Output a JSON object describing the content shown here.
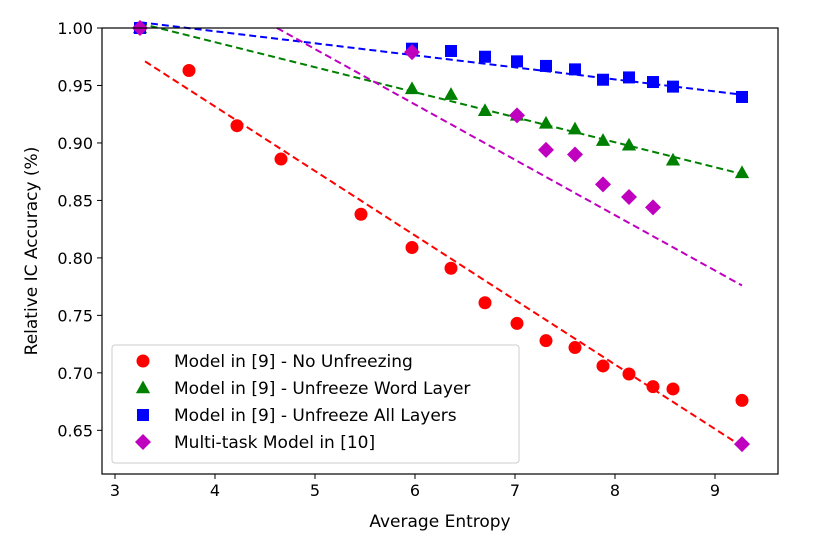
{
  "chart_data": {
    "type": "scatter",
    "title": "",
    "xlabel": "Average Entropy",
    "ylabel": "Relative IC Accuracy (%)",
    "xlim": [
      2.87,
      9.63
    ],
    "ylim": [
      0.612,
      1.0
    ],
    "xticks": [
      3,
      4,
      5,
      6,
      7,
      8,
      9
    ],
    "xtick_labels": [
      "3",
      "4",
      "5",
      "6",
      "7",
      "8",
      "9"
    ],
    "yticks": [
      0.65,
      0.7,
      0.75,
      0.8,
      0.85,
      0.9,
      0.95,
      1.0
    ],
    "ytick_labels": [
      "0.65",
      "0.70",
      "0.75",
      "0.80",
      "0.85",
      "0.90",
      "0.95",
      "1.00"
    ],
    "legend_position": "bottom-left",
    "series": [
      {
        "name": "Model in [9] - No Unfreezing",
        "color": "#ff0000",
        "marker": "circle",
        "x": [
          3.25,
          3.74,
          4.22,
          4.66,
          5.46,
          5.97,
          6.36,
          6.7,
          7.02,
          7.31,
          7.6,
          7.88,
          8.14,
          8.38,
          8.58,
          9.27
        ],
        "y": [
          1.0,
          0.963,
          0.915,
          0.886,
          0.838,
          0.809,
          0.791,
          0.761,
          0.743,
          0.728,
          0.722,
          0.706,
          0.699,
          0.688,
          0.686,
          0.676
        ],
        "fit": [
          [
            3.3,
            0.971
          ],
          [
            9.27,
            0.636
          ]
        ]
      },
      {
        "name": "Model in [9] - Unfreeze Word Layer",
        "color": "#008000",
        "marker": "triangle",
        "x": [
          3.25,
          5.97,
          6.36,
          6.7,
          7.02,
          7.31,
          7.6,
          7.88,
          8.14,
          8.58,
          9.27
        ],
        "y": [
          1.0,
          0.947,
          0.942,
          0.928,
          0.924,
          0.917,
          0.912,
          0.902,
          0.898,
          0.885,
          0.874
        ],
        "fit": [
          [
            3.25,
            1.004
          ],
          [
            9.27,
            0.873
          ]
        ]
      },
      {
        "name": "Model in [9] - Unfreeze All Layers",
        "color": "#0000ff",
        "marker": "square",
        "x": [
          3.25,
          5.97,
          6.36,
          6.7,
          7.02,
          7.31,
          7.6,
          7.88,
          8.14,
          8.38,
          8.58,
          9.27
        ],
        "y": [
          1.0,
          0.982,
          0.98,
          0.975,
          0.971,
          0.967,
          0.964,
          0.955,
          0.957,
          0.953,
          0.949,
          0.94
        ],
        "fit": [
          [
            3.25,
            1.005
          ],
          [
            9.27,
            0.942
          ]
        ]
      },
      {
        "name": "Multi-task Model in [10]",
        "color": "#bf00bf",
        "marker": "diamond",
        "x": [
          3.25,
          5.97,
          7.02,
          7.31,
          7.6,
          7.88,
          8.14,
          8.38,
          9.27
        ],
        "y": [
          1.0,
          0.979,
          0.924,
          0.894,
          0.89,
          0.864,
          0.853,
          0.844,
          0.638
        ],
        "fit": [
          [
            4.62,
            1.0
          ],
          [
            9.27,
            0.776
          ]
        ]
      }
    ]
  }
}
